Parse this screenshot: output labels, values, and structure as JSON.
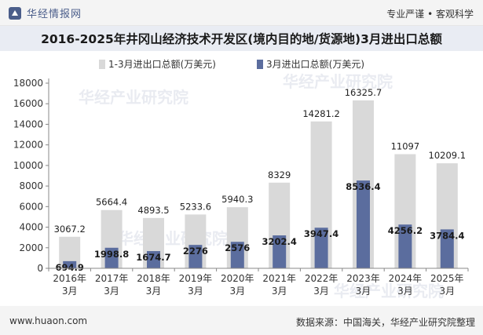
{
  "header": {
    "brand": "华经情报网",
    "slogan": "专业严谨 • 客观科学"
  },
  "watermark": "华经产业研究院",
  "footer": {
    "website": "www.huaon.com",
    "source": "数据来源：中国海关，华经产业研究院整理"
  },
  "colors": {
    "series_total": "#d9d9d9",
    "series_march": "#5b6d9e",
    "title_bg": "#e9ecf3"
  },
  "chart_data": {
    "type": "bar",
    "title": "2016-2025年井冈山经济技术开发区(境内目的地/货源地)3月进出口总额",
    "categories": [
      "2016年\n3月",
      "2017年\n3月",
      "2018年\n3月",
      "2019年\n3月",
      "2020年\n3月",
      "2021年\n3月",
      "2022年\n3月",
      "2023年\n3月",
      "2024年\n3月",
      "2025年\n3月"
    ],
    "series": [
      {
        "name": "1-3月进出口总额(万美元)",
        "values": [
          3067.2,
          5664.4,
          4893.5,
          5233.6,
          5940.3,
          8329,
          14281.2,
          16325.7,
          11097,
          10209.1
        ]
      },
      {
        "name": "3月进出口总额(万美元)",
        "values": [
          694.9,
          1998.8,
          1674.7,
          2276,
          2576,
          3202.4,
          3947.4,
          8536.4,
          4256.2,
          3784.4
        ]
      }
    ],
    "ylim": [
      0,
      18000
    ],
    "yticks": [
      0,
      2000,
      4000,
      6000,
      8000,
      10000,
      12000,
      14000,
      16000,
      18000
    ],
    "grid": false,
    "legend_position": "top-center"
  }
}
